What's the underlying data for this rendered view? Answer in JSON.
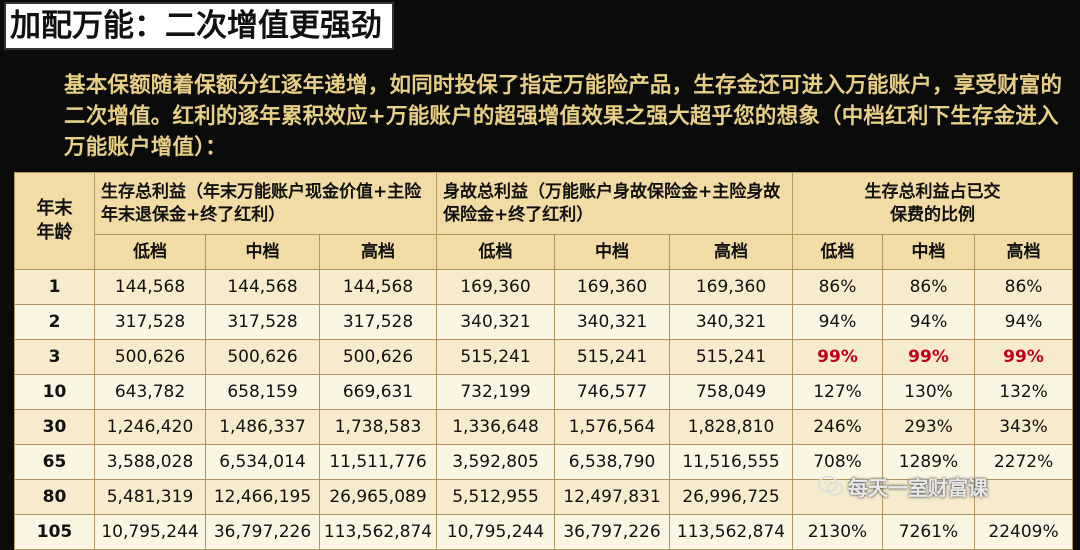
{
  "title": "加配万能：二次增值更强劲",
  "intro": "基本保额随着保额分红逐年递增，如同时投保了指定万能险产品，生存金还可进入万能账户，享受财富的二次增值。红利的逐年累积效应+万能账户的超强增值效果之强大超乎您的想象（中档红利下生存金进入万能账户增值）：",
  "table": {
    "age_header": "年末年龄",
    "groups": [
      "生存总利益（年末万能账户现金价值+主险年末退保金+终了红利）",
      "身故总利益（万能账户身故保险金+主险身故保险金+终了红利）",
      "生存总利益占已交保费的比例"
    ],
    "sub_headers": [
      "低档",
      "中档",
      "高档",
      "低档",
      "中档",
      "高档",
      "低档",
      "中档",
      "高档"
    ],
    "rows": [
      {
        "age": "1",
        "cells": [
          "144,568",
          "144,568",
          "144,568",
          "169,360",
          "169,360",
          "169,360",
          "86%",
          "86%",
          "86%"
        ]
      },
      {
        "age": "2",
        "cells": [
          "317,528",
          "317,528",
          "317,528",
          "340,321",
          "340,321",
          "340,321",
          "94%",
          "94%",
          "94%"
        ]
      },
      {
        "age": "3",
        "cells": [
          "500,626",
          "500,626",
          "500,626",
          "515,241",
          "515,241",
          "515,241",
          "99%",
          "99%",
          "99%"
        ]
      },
      {
        "age": "10",
        "cells": [
          "643,782",
          "658,159",
          "669,631",
          "732,199",
          "746,577",
          "758,049",
          "127%",
          "130%",
          "132%"
        ]
      },
      {
        "age": "30",
        "cells": [
          "1,246,420",
          "1,486,337",
          "1,738,583",
          "1,336,648",
          "1,576,564",
          "1,828,810",
          "246%",
          "293%",
          "343%"
        ]
      },
      {
        "age": "65",
        "cells": [
          "3,588,028",
          "6,534,014",
          "11,511,776",
          "3,592,805",
          "6,538,790",
          "11,516,555",
          "708%",
          "1289%",
          "2272%"
        ]
      },
      {
        "age": "80",
        "cells": [
          "5,481,319",
          "12,466,195",
          "26,965,089",
          "5,512,955",
          "12,497,831",
          "26,996,725",
          "",
          "",
          ""
        ]
      },
      {
        "age": "105",
        "cells": [
          "10,795,244",
          "36,797,226",
          "113,562,874",
          "10,795,244",
          "36,797,226",
          "113,562,874",
          "2130%",
          "7261%",
          "22409%"
        ]
      }
    ]
  },
  "watermark": "每天一室财富课",
  "colors": {
    "highlight": "#c0001a",
    "intro_text": "#e7cf86",
    "table_bg": "#f4e3b6"
  }
}
